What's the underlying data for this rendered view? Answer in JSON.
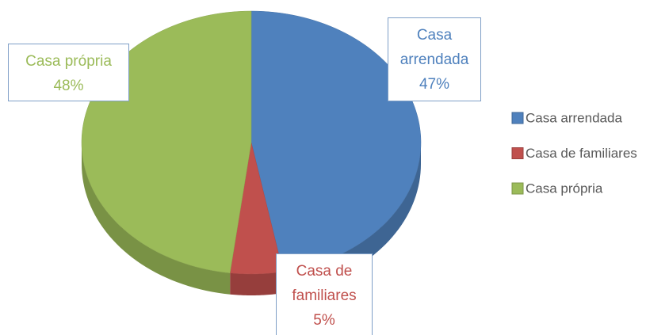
{
  "chart_data": {
    "type": "pie",
    "categories": [
      "Casa arrendada",
      "Casa de familiares",
      "Casa própria"
    ],
    "values": [
      47,
      5,
      48
    ],
    "value_labels": [
      "47%",
      "5%",
      "48%"
    ],
    "colors": [
      "#4f81bd",
      "#c0504d",
      "#9bbb59"
    ],
    "legend": "right"
  }
}
